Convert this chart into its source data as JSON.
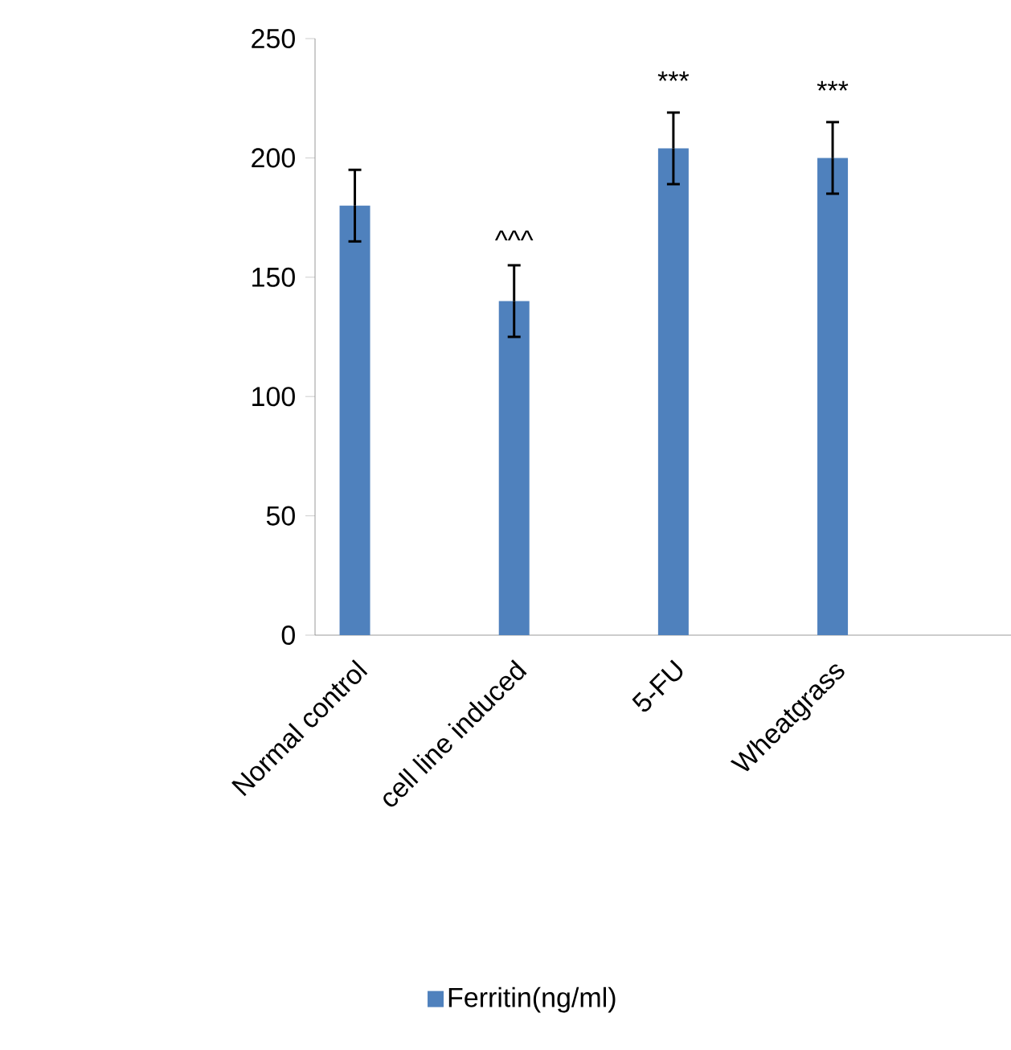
{
  "chart_data": {
    "type": "bar",
    "categories": [
      "Normal control",
      "cell line induced",
      "5-FU",
      "Wheatgrass"
    ],
    "series": [
      {
        "name": "Ferritin(ng/ml)",
        "color": "#4f81bd",
        "values": [
          180,
          140,
          204,
          200
        ],
        "errors": [
          15,
          15,
          15,
          15
        ]
      }
    ],
    "ylim": [
      0,
      250
    ],
    "yticks": [
      0,
      50,
      100,
      150,
      200,
      250
    ],
    "annotations": [
      {
        "text": "^^^",
        "x": "cell line induced",
        "y": 155
      },
      {
        "text": "***",
        "x": "5-FU",
        "y": 219
      },
      {
        "text": "***",
        "x": "Wheatgrass",
        "y": 215
      }
    ],
    "legend": "bottom",
    "grid": false
  }
}
